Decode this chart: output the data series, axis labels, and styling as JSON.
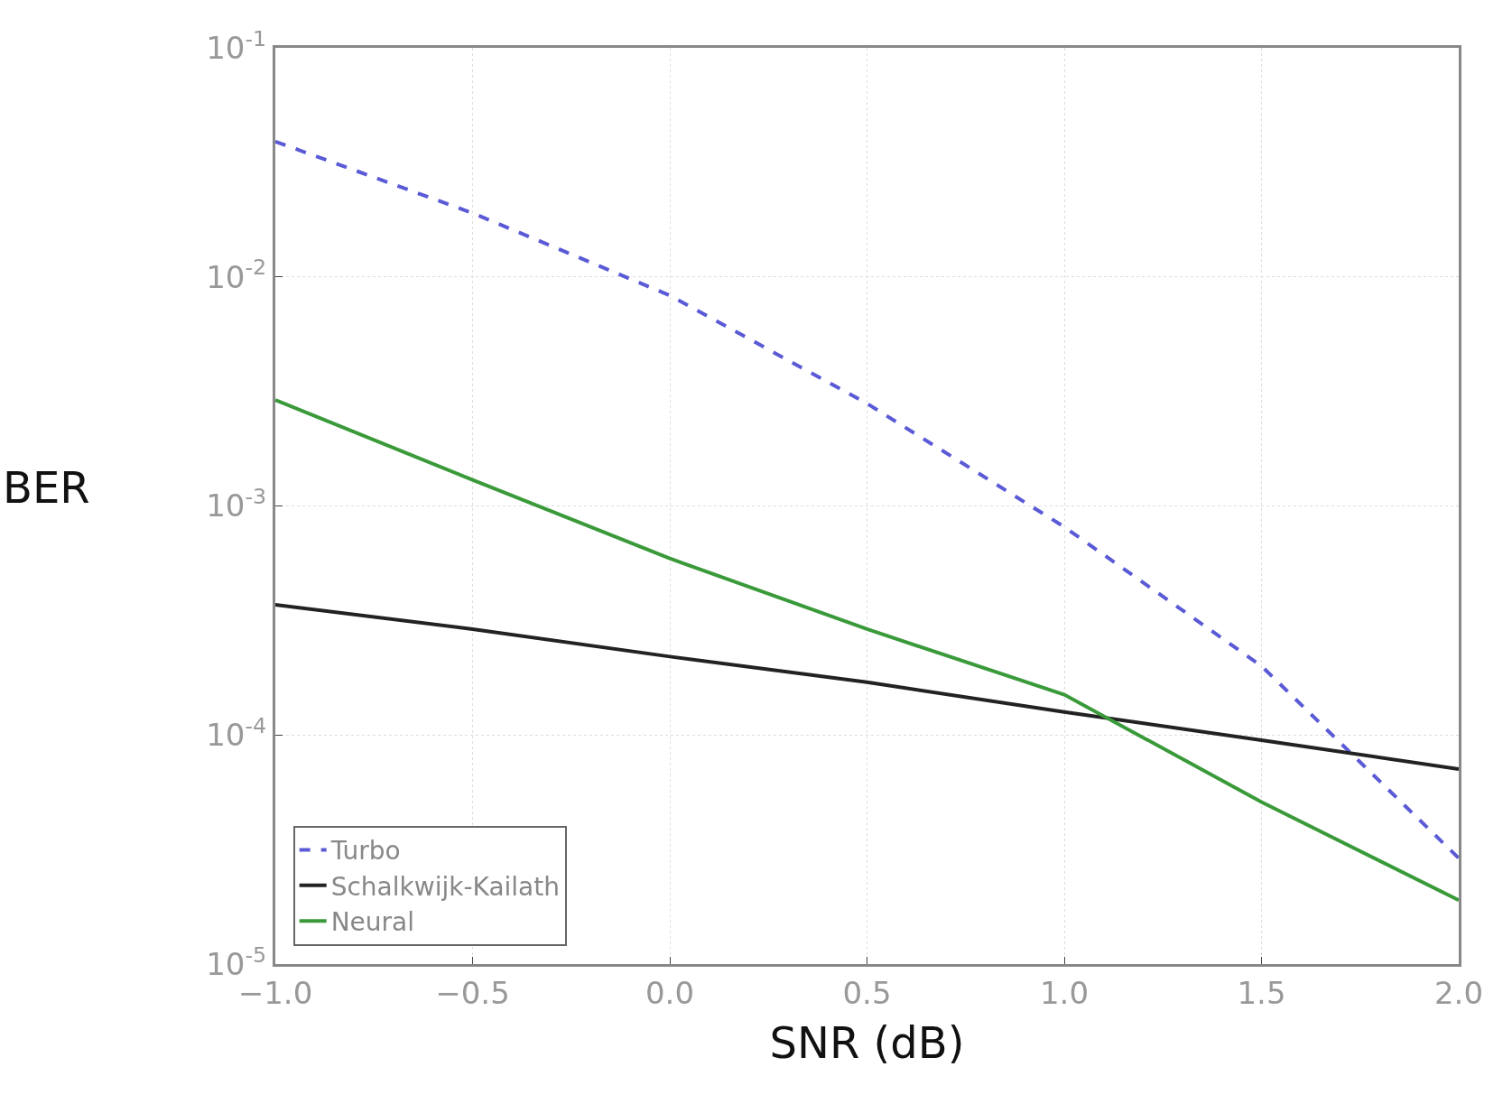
{
  "chart_data": {
    "type": "line",
    "xlabel": "SNR (dB)",
    "ylabel": "BER",
    "log": "y",
    "x": [
      -1.0,
      -0.5,
      0.0,
      0.5,
      1.0,
      1.5,
      2.0
    ],
    "series": [
      {
        "name": "Turbo",
        "color": "#5a5ad6",
        "line_style": "dashed",
        "values": [
          0.039,
          0.019,
          0.0083,
          0.0028,
          0.00081,
          0.0002,
          2.9e-05
        ]
      },
      {
        "name": "Schalkwijk-Kailath",
        "color": "#222222",
        "line_style": "solid",
        "values": [
          0.00037,
          0.00029,
          0.00022,
          0.00017,
          0.000126,
          9.5e-05,
          7.1e-05
        ]
      },
      {
        "name": "Neural",
        "color": "#3a9a3a",
        "line_style": "solid",
        "values": [
          0.0029,
          0.0013,
          0.00059,
          0.00029,
          0.00015,
          5.1e-05,
          1.9e-05
        ]
      }
    ],
    "xlim": [
      -1.0,
      2.0
    ],
    "xticks": [
      {
        "value": -1.0,
        "label": "−1.0"
      },
      {
        "value": -0.5,
        "label": "−0.5"
      },
      {
        "value": 0.0,
        "label": "0.0"
      },
      {
        "value": 0.5,
        "label": "0.5"
      },
      {
        "value": 1.0,
        "label": "1.0"
      },
      {
        "value": 1.5,
        "label": "1.5"
      },
      {
        "value": 2.0,
        "label": "2.0"
      }
    ],
    "ylim": [
      1e-05,
      0.1
    ],
    "yticks": [
      {
        "value": 0.1,
        "label": "10$^{-1}$"
      },
      {
        "value": 0.01,
        "label": "10$^{-2}$"
      },
      {
        "value": 0.001,
        "label": "10$^{-3}$"
      },
      {
        "value": 0.0001,
        "label": "10$^{-4}$"
      },
      {
        "value": 1e-05,
        "label": "10$^{-5}$"
      }
    ],
    "grid": true,
    "legend": "bottom left"
  }
}
